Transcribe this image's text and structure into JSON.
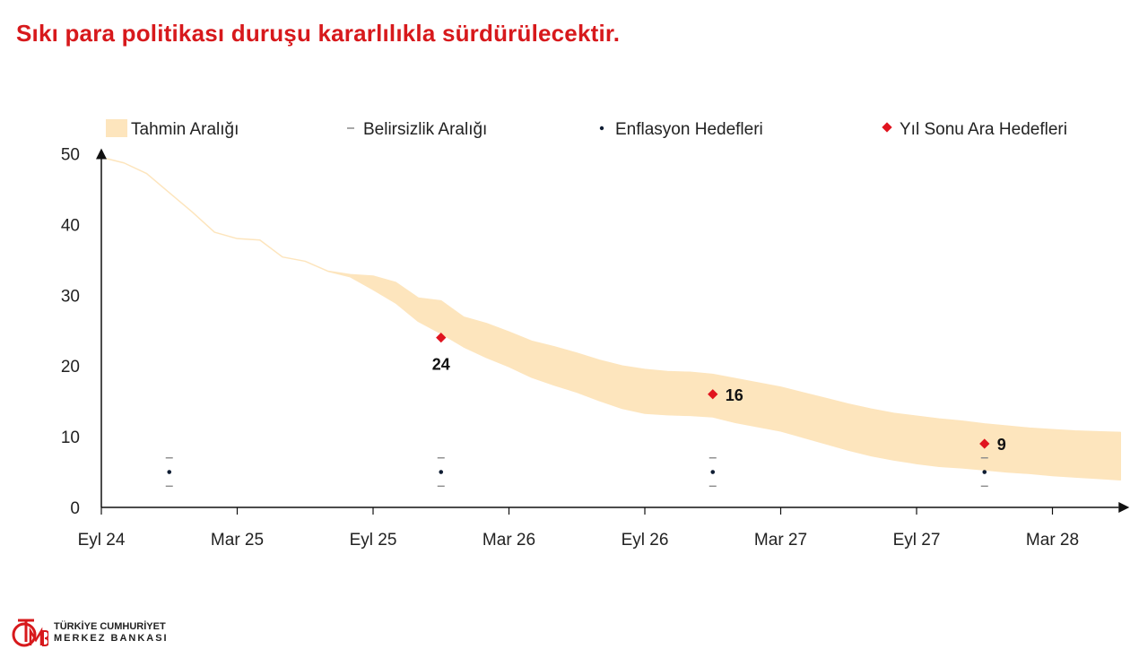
{
  "title": "Sıkı para politikası duruşu kararlılıkla sürdürülecektir.",
  "legend": {
    "band": "Tahmin Aralığı",
    "uncertainty": "Belirsizlik Aralığı",
    "targets": "Enflasyon Hedefleri",
    "interim": "Yıl Sonu Ara Hedefleri"
  },
  "colors": {
    "band": "#fde5bd",
    "interim": "#e0141f",
    "target": "#0f1d33",
    "uncertainty": "#8a8a8a",
    "title": "#d7191c",
    "axis": "#111111"
  },
  "logo": {
    "line1": "TÜRKİYE CUMHURİYET",
    "line2": "MERKEZ BANKASI",
    "mark": "TCMB"
  },
  "chart_data": {
    "type": "area",
    "title": "",
    "xlabel": "",
    "ylabel": "",
    "ylim": [
      0,
      50
    ],
    "yticks": [
      0,
      10,
      20,
      30,
      40,
      50
    ],
    "xlim": [
      0,
      45
    ],
    "xticks": [
      {
        "x": 0,
        "label": "Eyl 24"
      },
      {
        "x": 6,
        "label": "Mar 25"
      },
      {
        "x": 12,
        "label": "Eyl 25"
      },
      {
        "x": 18,
        "label": "Mar 26"
      },
      {
        "x": 24,
        "label": "Eyl 26"
      },
      {
        "x": 30,
        "label": "Mar 27"
      },
      {
        "x": 36,
        "label": "Eyl 27"
      },
      {
        "x": 42,
        "label": "Mar 28"
      }
    ],
    "legend_position": "top",
    "grid": false,
    "series": [
      {
        "name": "Tahmin Aralığı",
        "x": [
          0,
          1,
          2,
          3,
          4,
          5,
          6,
          7,
          8,
          9,
          10,
          11,
          12,
          13,
          14,
          15,
          16,
          17,
          18,
          19,
          20,
          21,
          22,
          23,
          24,
          25,
          26,
          27,
          28,
          29,
          30,
          31,
          32,
          33,
          34,
          35,
          36,
          37,
          38,
          39,
          40,
          41,
          42,
          43,
          44,
          45
        ],
        "upper": [
          49.5,
          48.7,
          47.2,
          44.5,
          41.8,
          38.9,
          38.0,
          37.8,
          35.4,
          34.8,
          33.4,
          32.9,
          32.7,
          31.8,
          29.6,
          29.2,
          26.9,
          26.0,
          24.8,
          23.5,
          22.7,
          21.8,
          20.8,
          20.0,
          19.5,
          19.2,
          19.1,
          18.8,
          18.2,
          17.6,
          17.0,
          16.2,
          15.4,
          14.6,
          13.9,
          13.3,
          12.9,
          12.5,
          12.2,
          11.8,
          11.5,
          11.2,
          11.0,
          10.8,
          10.7,
          10.6
        ],
        "lower": [
          49.5,
          48.7,
          47.2,
          44.5,
          41.8,
          38.9,
          38.0,
          37.8,
          35.4,
          34.8,
          33.4,
          32.6,
          30.8,
          28.9,
          26.3,
          24.6,
          22.7,
          21.2,
          19.9,
          18.4,
          17.3,
          16.3,
          15.1,
          14.0,
          13.3,
          13.1,
          13.0,
          12.8,
          12.0,
          11.4,
          10.8,
          9.9,
          9.0,
          8.1,
          7.3,
          6.7,
          6.2,
          5.8,
          5.6,
          5.3,
          5.0,
          4.8,
          4.5,
          4.3,
          4.1,
          3.9
        ]
      }
    ],
    "uncertainty_ranges": [
      {
        "x": 3,
        "low": 3,
        "high": 7
      },
      {
        "x": 15,
        "low": 3,
        "high": 7
      },
      {
        "x": 27,
        "low": 3,
        "high": 7
      },
      {
        "x": 39,
        "low": 3,
        "high": 7
      }
    ],
    "inflation_targets": [
      {
        "x": 3,
        "value": 5
      },
      {
        "x": 15,
        "value": 5
      },
      {
        "x": 27,
        "value": 5
      },
      {
        "x": 39,
        "value": 5
      }
    ],
    "interim_targets": [
      {
        "x": 15,
        "value": 24,
        "label": "24"
      },
      {
        "x": 27,
        "value": 16,
        "label": "16"
      },
      {
        "x": 39,
        "value": 9,
        "label": "9"
      }
    ]
  }
}
